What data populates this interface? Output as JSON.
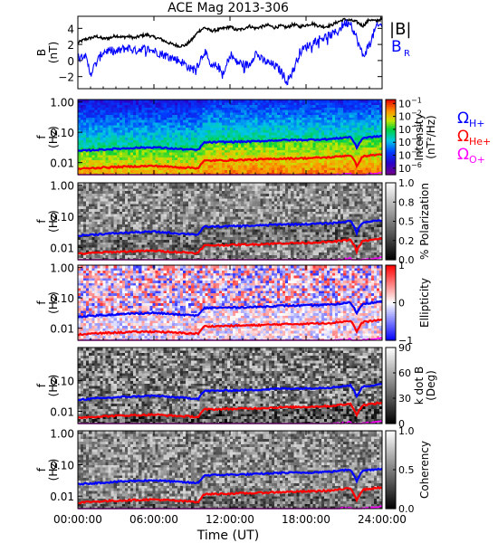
{
  "chart_data": {
    "type": "multi-panel",
    "title": "ACE Mag 2013-306",
    "xlabel": "Time (UT)",
    "x_tick_labels": [
      "00:00:00",
      "06:00:00",
      "12:00:00",
      "18:00:00",
      "24:00:00"
    ],
    "x_range_hours": [
      0,
      24
    ],
    "panels": [
      {
        "type": "line",
        "ylabel_lines": [
          "B",
          "(nT)"
        ],
        "ylim": [
          -3.5,
          5.5
        ],
        "y_ticks": [
          4,
          2,
          0,
          -2
        ],
        "y_tick_labels": [
          "4",
          "2",
          "0",
          "−2"
        ],
        "series": [
          {
            "name": "|B|",
            "color": "#000000",
            "x": [
              0,
              0.5,
              1,
              1.5,
              2,
              2.5,
              3,
              3.5,
              4,
              4.5,
              5,
              5.5,
              6,
              6.5,
              7,
              7.5,
              8,
              8.5,
              9,
              9.5,
              10,
              10.5,
              11,
              11.5,
              12,
              12.5,
              13,
              13.5,
              14,
              14.5,
              15,
              15.5,
              16,
              16.5,
              17,
              17.5,
              18,
              18.5,
              19,
              19.5,
              20,
              20.5,
              21,
              21.5,
              22,
              22.5,
              23,
              23.5,
              24
            ],
            "values": [
              2.2,
              2.6,
              2.8,
              3.0,
              2.7,
              2.8,
              3.1,
              2.9,
              3.0,
              2.8,
              3.1,
              3.2,
              2.9,
              2.7,
              2.3,
              2.0,
              1.8,
              1.9,
              2.6,
              3.6,
              4.1,
              3.7,
              3.8,
              4.0,
              4.2,
              3.8,
              3.9,
              4.3,
              4.0,
              4.2,
              4.4,
              4.1,
              4.3,
              4.1,
              4.5,
              4.2,
              4.4,
              4.6,
              4.3,
              4.2,
              4.4,
              4.8,
              5.1,
              5.0,
              4.8,
              4.3,
              5.1,
              4.9,
              5.2
            ]
          },
          {
            "name": "B_R",
            "color": "#0000ff",
            "x": [
              0,
              0.5,
              1,
              1.5,
              2,
              2.5,
              3,
              3.5,
              4,
              4.5,
              5,
              5.5,
              6,
              6.5,
              7,
              7.5,
              8,
              8.5,
              9,
              9.5,
              10,
              10.5,
              11,
              11.5,
              12,
              12.5,
              13,
              13.5,
              14,
              14.5,
              15,
              15.5,
              16,
              16.5,
              17,
              17.5,
              18,
              18.5,
              19,
              19.5,
              20,
              20.5,
              21,
              21.5,
              22,
              22.5,
              23,
              23.5,
              24
            ],
            "values": [
              0.5,
              0.9,
              -1.6,
              -0.2,
              1.1,
              1.3,
              1.0,
              1.4,
              1.6,
              1.2,
              1.5,
              1.4,
              1.2,
              0.9,
              0.6,
              0.3,
              0.0,
              -0.5,
              -1.2,
              -0.4,
              1.2,
              -0.9,
              -0.6,
              -1.9,
              0.9,
              -0.2,
              -0.4,
              -0.6,
              1.0,
              0.1,
              -0.3,
              -0.6,
              -1.3,
              -2.6,
              -1.2,
              1.0,
              1.7,
              2.2,
              2.7,
              2.9,
              3.2,
              3.6,
              4.6,
              4.8,
              2.7,
              0.5,
              2.0,
              4.0,
              4.6
            ]
          }
        ],
        "legend_labels": [
          "|B|",
          "B",
          "R"
        ]
      },
      {
        "type": "heatmap",
        "ylabel_lines": [
          "f",
          "(Hz)"
        ],
        "y_scale": "log",
        "ylim": [
          0.004,
          1.2
        ],
        "y_ticks": [
          1.0,
          0.1,
          0.01
        ],
        "y_tick_labels": [
          "1.00",
          "0.10",
          "0.01"
        ],
        "colorbar": {
          "label_lines": [
            "Intensity",
            "(nT²/Hz)"
          ],
          "colormap": "rainbow",
          "range": [
            -6.5,
            -0.7
          ],
          "ticks": [
            -1,
            -2,
            -3,
            -4,
            -5,
            -6
          ],
          "tick_labels": [
            "10",
            "10",
            "10",
            "10",
            "10",
            "10"
          ],
          "tick_exponents": [
            "−1",
            "−2",
            "−3",
            "−4",
            "−5",
            "−6"
          ]
        },
        "gyro_legend": [
          {
            "symbol": "Ω",
            "subscript": "H+",
            "color": "#0000ff"
          },
          {
            "symbol": "Ω",
            "subscript": "He+",
            "color": "#ff0000"
          },
          {
            "symbol": "Ω",
            "subscript": "O+",
            "color": "#ff00ff"
          }
        ]
      },
      {
        "type": "heatmap",
        "ylabel_lines": [
          "f",
          "(Hz)"
        ],
        "y_scale": "log",
        "ylim": [
          0.004,
          1.2
        ],
        "y_ticks": [
          1.0,
          0.1,
          0.01
        ],
        "y_tick_labels": [
          "1.00",
          "0.10",
          "0.01"
        ],
        "colorbar": {
          "label_lines": [
            "% Polarization"
          ],
          "colormap": "gray",
          "range": [
            0,
            1
          ],
          "ticks": [
            1,
            0.75,
            0.5,
            0.25,
            0
          ],
          "tick_labels": [
            "1.0",
            "0.8",
            "0.5",
            "0.2",
            "0.0"
          ]
        }
      },
      {
        "type": "heatmap",
        "ylabel_lines": [
          "f",
          "(Hz)"
        ],
        "y_scale": "log",
        "ylim": [
          0.004,
          1.2
        ],
        "y_ticks": [
          1.0,
          0.1,
          0.01
        ],
        "y_tick_labels": [
          "1.00",
          "0.10",
          "0.01"
        ],
        "colorbar": {
          "label_lines": [
            "Ellipticity"
          ],
          "colormap": "bwr",
          "range": [
            -1,
            1
          ],
          "ticks": [
            1,
            0,
            -1
          ],
          "tick_labels": [
            "1",
            "0",
            "−1"
          ]
        }
      },
      {
        "type": "heatmap",
        "ylabel_lines": [
          "f",
          "(Hz)"
        ],
        "y_scale": "log",
        "ylim": [
          0.004,
          1.2
        ],
        "y_ticks": [
          0.1,
          0.01
        ],
        "y_tick_labels": [
          "0.10",
          "0.01"
        ],
        "colorbar": {
          "label_lines": [
            "k dot B",
            "(Deg)"
          ],
          "colormap": "gray",
          "range": [
            0,
            90
          ],
          "ticks": [
            90,
            60,
            30,
            0
          ],
          "tick_labels": [
            "90",
            "60",
            "30",
            "0"
          ]
        }
      },
      {
        "type": "heatmap",
        "ylabel_lines": [
          "f",
          "(Hz)"
        ],
        "y_scale": "log",
        "ylim": [
          0.004,
          1.2
        ],
        "y_ticks": [
          1.0,
          0.1,
          0.01
        ],
        "y_tick_labels": [
          "1.00",
          "0.10",
          "0.01"
        ],
        "colorbar": {
          "label_lines": [
            "Coherency"
          ],
          "colormap": "gray",
          "range": [
            0,
            1
          ],
          "ticks": [
            1,
            0.5,
            0
          ],
          "tick_labels": [
            "1.0",
            "0.5",
            "0.0"
          ]
        }
      }
    ],
    "gyrofrequency_lines": [
      {
        "name": "ΩH+",
        "color": "#0000ff",
        "x": [
          0,
          2,
          4,
          6,
          8,
          9.5,
          10,
          12,
          14,
          16,
          18,
          20,
          21.5,
          22,
          22.5,
          24
        ],
        "values": [
          0.024,
          0.027,
          0.03,
          0.032,
          0.028,
          0.026,
          0.046,
          0.048,
          0.05,
          0.055,
          0.056,
          0.06,
          0.07,
          0.03,
          0.065,
          0.075
        ]
      },
      {
        "name": "ΩHe+",
        "color": "#ff0000",
        "x": [
          0,
          2,
          4,
          6,
          8,
          9.5,
          10,
          12,
          14,
          16,
          18,
          20,
          21.5,
          22,
          22.5,
          24
        ],
        "values": [
          0.0062,
          0.0069,
          0.0074,
          0.0078,
          0.007,
          0.0066,
          0.0115,
          0.012,
          0.0125,
          0.0135,
          0.014,
          0.015,
          0.0175,
          0.0075,
          0.016,
          0.019
        ]
      },
      {
        "name": "ΩO+",
        "color": "#ff00ff",
        "x": [
          0,
          2,
          4,
          6,
          8,
          9.5,
          10,
          12,
          14,
          16,
          18,
          20,
          21.5,
          22,
          22.5,
          24
        ],
        "values": [
          0.0016,
          0.0017,
          0.0018,
          0.0019,
          0.0017,
          0.0016,
          0.0029,
          0.003,
          0.0031,
          0.0034,
          0.0035,
          0.0038,
          0.0044,
          0.0019,
          0.004,
          0.0047
        ]
      }
    ]
  }
}
